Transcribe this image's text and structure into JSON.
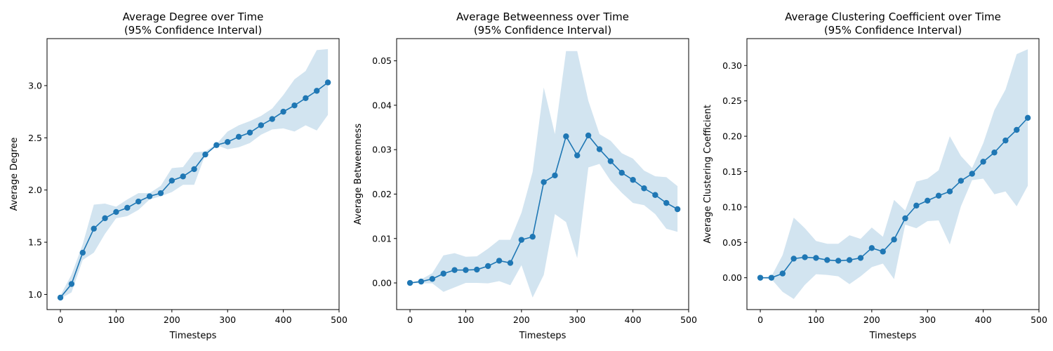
{
  "chart_data": [
    {
      "type": "line",
      "title_line1": "Average Degree over Time",
      "title_line2": "(95% Confidence Interval)",
      "xlabel": "Timesteps",
      "ylabel": "Average Degree",
      "xlim": [
        -24,
        500
      ],
      "ylim": [
        0.855,
        3.45
      ],
      "xticks": [
        0,
        100,
        200,
        300,
        400,
        500
      ],
      "yticks": [
        1.0,
        1.5,
        2.0,
        2.5,
        3.0
      ],
      "ytick_decimals": 1,
      "grid": false,
      "x": [
        0,
        20,
        40,
        60,
        80,
        100,
        120,
        140,
        160,
        180,
        200,
        220,
        240,
        260,
        280,
        300,
        320,
        340,
        360,
        380,
        400,
        420,
        440,
        460,
        480
      ],
      "series": [
        {
          "values": [
            0.97,
            1.1,
            1.4,
            1.63,
            1.73,
            1.79,
            1.83,
            1.89,
            1.94,
            1.97,
            2.09,
            2.13,
            2.2,
            2.34,
            2.43,
            2.46,
            2.51,
            2.55,
            2.62,
            2.68,
            2.75,
            2.81,
            2.88,
            2.95,
            3.03
          ],
          "ci_lower": [
            0.96,
            1.02,
            1.33,
            1.4,
            1.58,
            1.73,
            1.75,
            1.81,
            1.91,
            1.94,
            1.98,
            2.05,
            2.05,
            2.34,
            2.43,
            2.39,
            2.41,
            2.45,
            2.53,
            2.58,
            2.59,
            2.56,
            2.62,
            2.57,
            2.72
          ],
          "ci_upper": [
            0.99,
            1.19,
            1.48,
            1.86,
            1.87,
            1.84,
            1.91,
            1.97,
            1.97,
            2.04,
            2.21,
            2.22,
            2.36,
            2.37,
            2.44,
            2.56,
            2.62,
            2.66,
            2.71,
            2.78,
            2.91,
            3.06,
            3.14,
            3.34,
            3.35
          ]
        }
      ]
    },
    {
      "type": "line",
      "title_line1": "Average Betweenness over Time",
      "title_line2": "(95% Confidence Interval)",
      "xlabel": "Timesteps",
      "ylabel": "Average Betweenness",
      "xlim": [
        -24,
        500
      ],
      "ylim": [
        -0.006,
        0.055
      ],
      "xticks": [
        0,
        100,
        200,
        300,
        400,
        500
      ],
      "yticks": [
        0.0,
        0.01,
        0.02,
        0.03,
        0.04,
        0.05
      ],
      "ytick_decimals": 2,
      "grid": false,
      "x": [
        0,
        20,
        40,
        60,
        80,
        100,
        120,
        140,
        160,
        180,
        200,
        220,
        240,
        260,
        280,
        300,
        320,
        340,
        360,
        380,
        400,
        420,
        440,
        460,
        480
      ],
      "series": [
        {
          "values": [
            0.0,
            0.0003,
            0.0009,
            0.0021,
            0.0029,
            0.0029,
            0.003,
            0.0038,
            0.005,
            0.0045,
            0.0097,
            0.0104,
            0.0227,
            0.0242,
            0.033,
            0.0287,
            0.0332,
            0.0301,
            0.0274,
            0.0248,
            0.0232,
            0.0213,
            0.0198,
            0.018,
            0.0166
          ],
          "ci_lower": [
            0.0,
            -0.0001,
            -0.0001,
            -0.002,
            -0.001,
            0.0,
            0.0,
            -0.0001,
            0.0004,
            -0.0005,
            0.004,
            -0.0033,
            0.0018,
            0.0155,
            0.0137,
            0.0056,
            0.026,
            0.0268,
            0.023,
            0.0203,
            0.018,
            0.0175,
            0.0155,
            0.0122,
            0.0115
          ],
          "ci_upper": [
            0.0,
            0.0008,
            0.0022,
            0.0062,
            0.0067,
            0.0059,
            0.006,
            0.0077,
            0.0097,
            0.0097,
            0.0158,
            0.025,
            0.044,
            0.0335,
            0.0522,
            0.0522,
            0.041,
            0.0335,
            0.032,
            0.0292,
            0.028,
            0.0253,
            0.024,
            0.0238,
            0.0218
          ]
        }
      ]
    },
    {
      "type": "line",
      "title_line1": "Average Clustering Coefficient over Time",
      "title_line2": "(95% Confidence Interval)",
      "xlabel": "Timesteps",
      "ylabel": "Average Clustering Coefficient",
      "xlim": [
        -24,
        500
      ],
      "ylim": [
        -0.045,
        0.338
      ],
      "xticks": [
        0,
        100,
        200,
        300,
        400,
        500
      ],
      "yticks": [
        0.0,
        0.05,
        0.1,
        0.15,
        0.2,
        0.25,
        0.3
      ],
      "ytick_decimals": 2,
      "grid": false,
      "x": [
        0,
        20,
        40,
        60,
        80,
        100,
        120,
        140,
        160,
        180,
        200,
        220,
        240,
        260,
        280,
        300,
        320,
        340,
        360,
        380,
        400,
        420,
        440,
        460,
        480
      ],
      "series": [
        {
          "values": [
            0.0,
            0.0,
            0.006,
            0.027,
            0.029,
            0.028,
            0.025,
            0.024,
            0.025,
            0.028,
            0.042,
            0.037,
            0.054,
            0.084,
            0.102,
            0.109,
            0.116,
            0.122,
            0.137,
            0.147,
            0.164,
            0.177,
            0.194,
            0.209,
            0.226
          ],
          "ci_lower": [
            0.0,
            -0.002,
            -0.02,
            -0.03,
            -0.01,
            0.005,
            0.004,
            0.002,
            -0.009,
            0.002,
            0.015,
            0.02,
            -0.002,
            0.075,
            0.07,
            0.08,
            0.081,
            0.047,
            0.101,
            0.138,
            0.14,
            0.118,
            0.122,
            0.101,
            0.13
          ],
          "ci_upper": [
            0.0,
            0.002,
            0.032,
            0.085,
            0.07,
            0.052,
            0.048,
            0.048,
            0.06,
            0.055,
            0.071,
            0.058,
            0.11,
            0.095,
            0.136,
            0.14,
            0.152,
            0.2,
            0.172,
            0.155,
            0.19,
            0.237,
            0.266,
            0.316,
            0.323
          ]
        }
      ]
    }
  ]
}
